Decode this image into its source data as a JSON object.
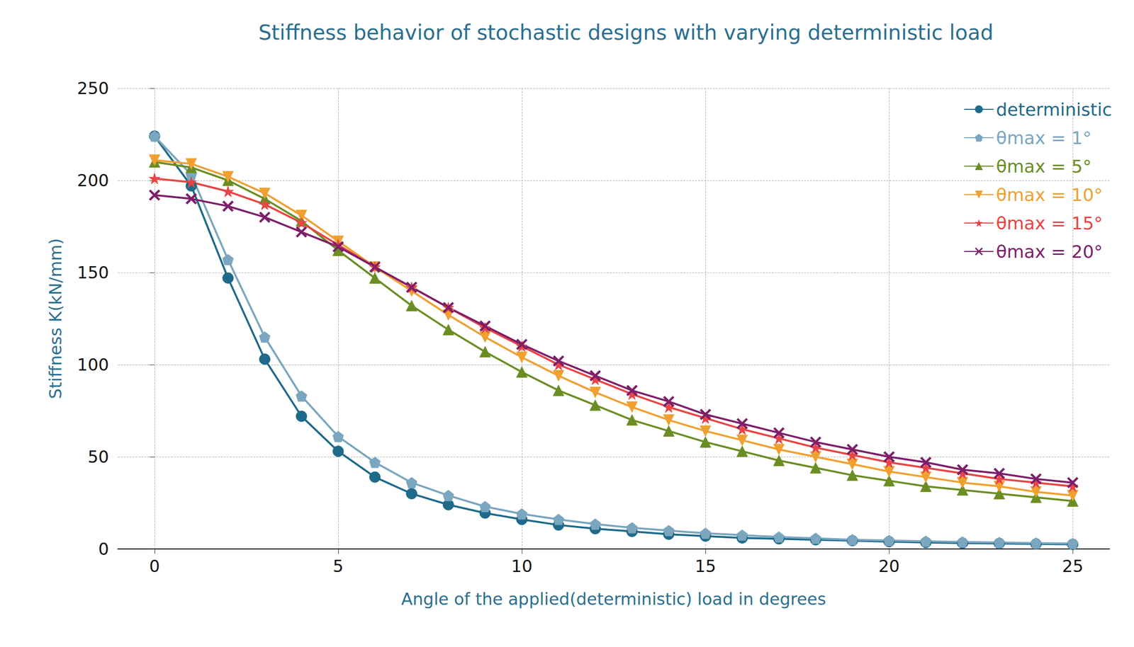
{
  "chart_data": {
    "type": "line",
    "title": "Stiffness behavior of stochastic designs with varying deterministic load",
    "x_label": "Angle of the applied(deterministic) load in degrees",
    "y_label": "Stiffness K(kN/mm)",
    "x": [
      0,
      1,
      2,
      3,
      4,
      5,
      6,
      7,
      8,
      9,
      10,
      11,
      12,
      13,
      14,
      15,
      16,
      17,
      18,
      19,
      20,
      21,
      22,
      23,
      24,
      25
    ],
    "xlim": [
      -1,
      26
    ],
    "xticks": [
      0,
      5,
      10,
      15,
      20,
      25
    ],
    "ylim": [
      0,
      250
    ],
    "yticks": [
      0,
      50,
      100,
      150,
      200,
      250
    ],
    "grid": true,
    "legend": "upper right",
    "series": [
      {
        "name": "deterministic",
        "color": "#1f6a8a",
        "marker": "circle",
        "line_style": "solid",
        "values": [
          224,
          197,
          147,
          103,
          72,
          53,
          39,
          30,
          24,
          19.5,
          16,
          13,
          11,
          9.5,
          8,
          7,
          6,
          5.5,
          5,
          4.5,
          4,
          3.5,
          3.2,
          3,
          2.7,
          2.5
        ]
      },
      {
        "name": "θmax = 1°",
        "color": "#7aa6bf",
        "marker": "pentagon",
        "line_style": "solid",
        "values": [
          224,
          203,
          157,
          115,
          83,
          61,
          47,
          36,
          29,
          23,
          19,
          16,
          13.5,
          11.5,
          10,
          8.5,
          7.5,
          6.5,
          5.8,
          5,
          4.6,
          4.2,
          3.8,
          3.5,
          3.2,
          3
        ]
      },
      {
        "name": "θmax = 5°",
        "color": "#6b8e23",
        "marker": "triangle",
        "line_style": "solid",
        "values": [
          210,
          207,
          200,
          190,
          178,
          162,
          147,
          132,
          119,
          107,
          96,
          86,
          78,
          70,
          64,
          58,
          53,
          48,
          44,
          40,
          37,
          34,
          32,
          30,
          28,
          26
        ]
      },
      {
        "name": "θmax = 10°",
        "color": "#f0a030",
        "marker": "triangle-down",
        "line_style": "solid",
        "values": [
          211,
          209,
          202,
          193,
          181,
          167,
          153,
          140,
          127,
          115,
          104,
          94,
          85,
          77,
          70,
          64,
          59,
          54,
          50,
          46,
          42,
          39,
          36,
          34,
          31,
          29
        ]
      },
      {
        "name": "θmax = 15°",
        "color": "#e84545",
        "marker": "star",
        "line_style": "solid",
        "values": [
          201,
          199,
          194,
          187,
          177,
          165,
          153,
          142,
          131,
          120,
          110,
          100,
          92,
          84,
          77,
          71,
          65,
          60,
          55,
          51,
          47,
          44,
          41,
          38,
          36,
          34
        ]
      },
      {
        "name": "θmax = 20°",
        "color": "#7d1f6a",
        "marker": "x",
        "line_style": "solid",
        "values": [
          192,
          190,
          186,
          180,
          172,
          164,
          153,
          142,
          131,
          121,
          111,
          102,
          94,
          86,
          80,
          73,
          68,
          63,
          58,
          54,
          50,
          47,
          43,
          41,
          38,
          36
        ]
      }
    ]
  }
}
